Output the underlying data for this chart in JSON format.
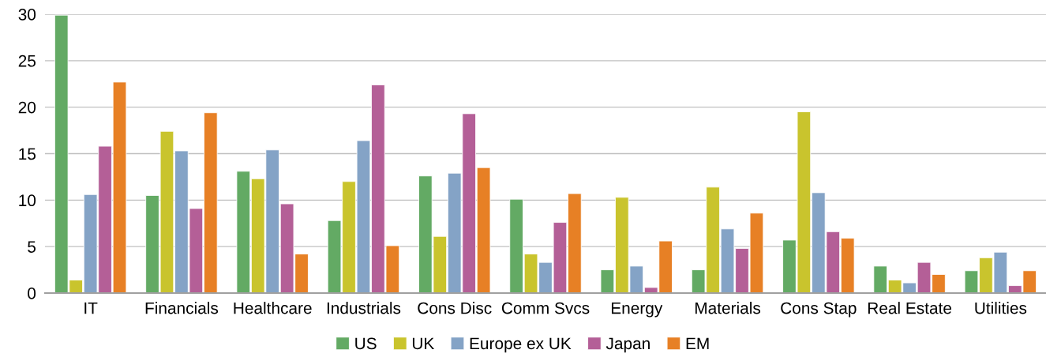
{
  "chart_data": {
    "type": "bar",
    "categories": [
      "IT",
      "Financials",
      "Healthcare",
      "Industrials",
      "Cons Disc",
      "Comm Svcs",
      "Energy",
      "Materials",
      "Cons Stap",
      "Real Estate",
      "Utilities"
    ],
    "series": [
      {
        "name": "US",
        "color": "#63aa64",
        "values": [
          29.9,
          10.5,
          13.1,
          7.8,
          12.6,
          10.1,
          2.5,
          2.5,
          5.7,
          2.9,
          2.4
        ]
      },
      {
        "name": "UK",
        "color": "#c9c42d",
        "values": [
          1.4,
          17.4,
          12.3,
          12.0,
          6.1,
          4.2,
          10.3,
          11.4,
          19.5,
          1.4,
          3.8
        ]
      },
      {
        "name": "Europe ex UK",
        "color": "#84a3c6",
        "values": [
          10.6,
          15.3,
          15.4,
          16.4,
          12.9,
          3.3,
          2.9,
          6.9,
          10.8,
          1.1,
          4.4
        ]
      },
      {
        "name": "Japan",
        "color": "#b45f97",
        "values": [
          15.8,
          9.1,
          9.6,
          22.4,
          19.3,
          7.6,
          0.6,
          4.8,
          6.6,
          3.3,
          0.8
        ]
      },
      {
        "name": "EM",
        "color": "#e78025",
        "values": [
          22.7,
          19.4,
          4.2,
          5.1,
          13.5,
          10.7,
          5.6,
          8.6,
          5.9,
          2.0,
          2.4
        ]
      }
    ],
    "ylim": [
      0,
      30
    ],
    "yticks": [
      0,
      5,
      10,
      15,
      20,
      25,
      30
    ],
    "grid": "y",
    "legend": "bottom"
  }
}
